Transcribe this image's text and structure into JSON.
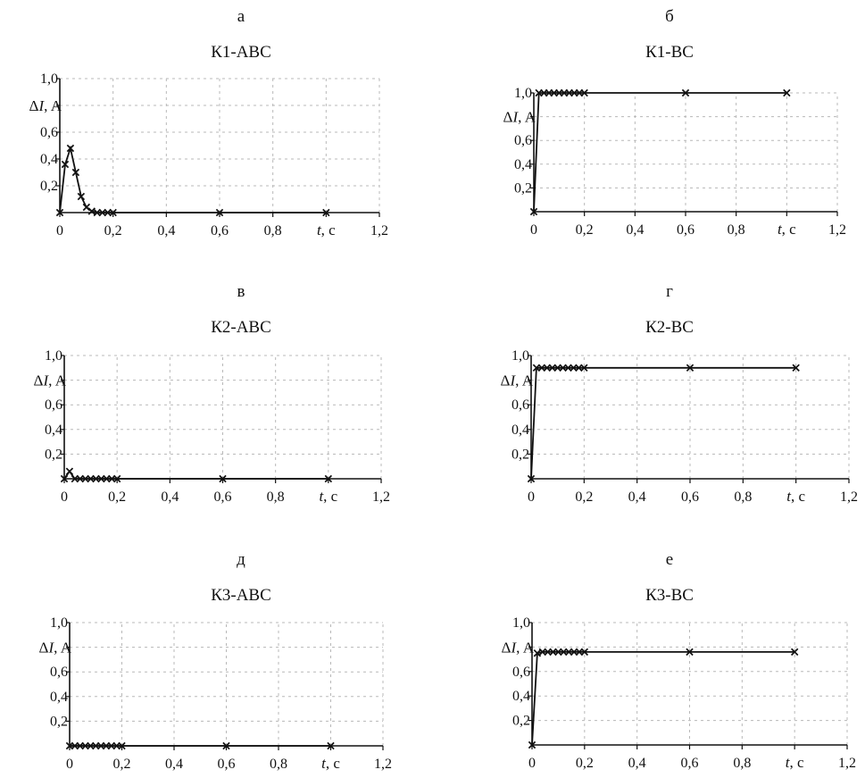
{
  "chart_data": [
    {
      "type": "line",
      "letter": "а",
      "title": "К1-ABC",
      "ylabel": "ΔI, A",
      "xlabel": "t, c",
      "xlim": [
        0,
        1.2
      ],
      "ylim": [
        0,
        1.0
      ],
      "xticks": [
        "0",
        "0,2",
        "0,4",
        "0,6",
        "0,8",
        "",
        "1,2"
      ],
      "yticks": [
        "0,2",
        "0,4",
        "0,6",
        "",
        "1,0"
      ],
      "grid": true,
      "series": [
        {
          "marker": "x",
          "color": "#111111",
          "x": [
            0,
            0.02,
            0.04,
            0.06,
            0.08,
            0.1,
            0.12,
            0.14,
            0.16,
            0.18,
            0.2,
            0.6,
            1.0
          ],
          "y": [
            0,
            0.36,
            0.48,
            0.3,
            0.12,
            0.04,
            0.01,
            0,
            0,
            0,
            0,
            0,
            0
          ]
        }
      ]
    },
    {
      "type": "line",
      "letter": "б",
      "title": "К1-BC",
      "ylabel": "ΔI, A",
      "xlabel": "t, c",
      "xlim": [
        0,
        1.2
      ],
      "ylim": [
        0,
        1.0
      ],
      "xticks": [
        "0",
        "0,2",
        "0,4",
        "0,6",
        "0,8",
        "",
        "1,2"
      ],
      "yticks": [
        "0,2",
        "0,4",
        "0,6",
        "",
        "1,0"
      ],
      "grid": true,
      "series": [
        {
          "marker": "x",
          "color": "#111111",
          "x": [
            0,
            0.02,
            0.04,
            0.06,
            0.08,
            0.1,
            0.12,
            0.14,
            0.16,
            0.18,
            0.2,
            0.6,
            1.0
          ],
          "y": [
            0,
            1.0,
            1.0,
            1.0,
            1.0,
            1.0,
            1.0,
            1.0,
            1.0,
            1.0,
            1.0,
            1.0,
            1.0
          ]
        }
      ]
    },
    {
      "type": "line",
      "letter": "в",
      "title": "К2-ABC",
      "ylabel": "ΔI, A",
      "xlabel": "t, c",
      "xlim": [
        0,
        1.2
      ],
      "ylim": [
        0,
        1.0
      ],
      "xticks": [
        "0",
        "0,2",
        "0,4",
        "0,6",
        "0,8",
        "",
        "1,2"
      ],
      "yticks": [
        "0,2",
        "0,4",
        "0,6",
        "",
        "1,0"
      ],
      "grid": true,
      "series": [
        {
          "marker": "x",
          "color": "#111111",
          "x": [
            0,
            0.02,
            0.04,
            0.06,
            0.08,
            0.1,
            0.12,
            0.14,
            0.16,
            0.18,
            0.2,
            0.6,
            1.0
          ],
          "y": [
            0,
            0.06,
            0,
            0,
            0,
            0,
            0,
            0,
            0,
            0,
            0,
            0,
            0
          ]
        }
      ]
    },
    {
      "type": "line",
      "letter": "г",
      "title": "К2-BC",
      "ylabel": "ΔI, A",
      "xlabel": "t, c",
      "xlim": [
        0,
        1.2
      ],
      "ylim": [
        0,
        1.0
      ],
      "xticks": [
        "0",
        "0,2",
        "0,4",
        "0,6",
        "0,8",
        "",
        "1,2"
      ],
      "yticks": [
        "0,2",
        "0,4",
        "0,6",
        "",
        "1,0"
      ],
      "grid": true,
      "series": [
        {
          "marker": "x",
          "color": "#111111",
          "x": [
            0,
            0.02,
            0.04,
            0.06,
            0.08,
            0.1,
            0.12,
            0.14,
            0.16,
            0.18,
            0.2,
            0.6,
            1.0
          ],
          "y": [
            0,
            0.9,
            0.9,
            0.9,
            0.9,
            0.9,
            0.9,
            0.9,
            0.9,
            0.9,
            0.9,
            0.9,
            0.9
          ]
        }
      ]
    },
    {
      "type": "line",
      "letter": "д",
      "title": "К3-ABC",
      "ylabel": "ΔI, A",
      "xlabel": "t, c",
      "xlim": [
        0,
        1.2
      ],
      "ylim": [
        0,
        1.0
      ],
      "xticks": [
        "0",
        "0,2",
        "0,4",
        "0,6",
        "0,8",
        "",
        "1,2"
      ],
      "yticks": [
        "0,2",
        "0,4",
        "0,6",
        "",
        "1,0"
      ],
      "grid": true,
      "series": [
        {
          "marker": "x",
          "color": "#111111",
          "x": [
            0,
            0.02,
            0.04,
            0.06,
            0.08,
            0.1,
            0.12,
            0.14,
            0.16,
            0.18,
            0.2,
            0.6,
            1.0
          ],
          "y": [
            0,
            0,
            0,
            0,
            0,
            0,
            0,
            0,
            0,
            0,
            0,
            0,
            0
          ]
        }
      ]
    },
    {
      "type": "line",
      "letter": "е",
      "title": "К3-BC",
      "ylabel": "ΔI, A",
      "xlabel": "t, c",
      "xlim": [
        0,
        1.2
      ],
      "ylim": [
        0,
        1.0
      ],
      "xticks": [
        "0",
        "0,2",
        "0,4",
        "0,6",
        "0,8",
        "",
        "1,2"
      ],
      "yticks": [
        "0,2",
        "0,4",
        "0,6",
        "",
        "1,0"
      ],
      "grid": true,
      "series": [
        {
          "marker": "x",
          "color": "#111111",
          "x": [
            0,
            0.02,
            0.04,
            0.06,
            0.08,
            0.1,
            0.12,
            0.14,
            0.16,
            0.18,
            0.2,
            0.6,
            1.0
          ],
          "y": [
            0,
            0.75,
            0.76,
            0.76,
            0.76,
            0.76,
            0.76,
            0.76,
            0.76,
            0.76,
            0.76,
            0.76,
            0.76
          ]
        }
      ]
    }
  ]
}
